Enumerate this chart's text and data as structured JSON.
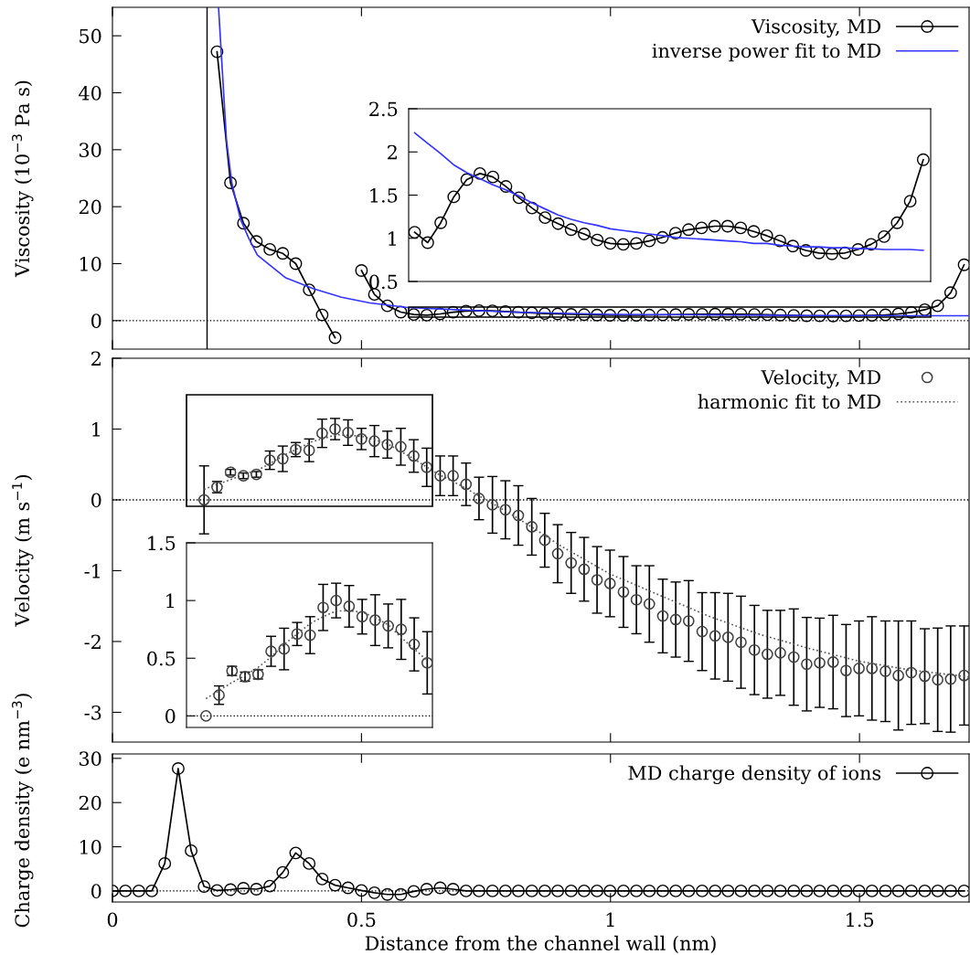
{
  "chart_data": [
    {
      "type": "line",
      "ylabel": "Viscosity (10$^{−3}$ Pa s)",
      "xlim": [
        0,
        1.72
      ],
      "ylim": [
        -5,
        55
      ],
      "xticks": [
        0,
        0.5,
        1,
        1.5
      ],
      "yticks": [
        0,
        10,
        20,
        30,
        40,
        50
      ],
      "tick_labels": "y",
      "legend": "top right",
      "grid": false,
      "marker": "circle",
      "ref_lines": [
        {
          "axis": "x",
          "value": 0.19,
          "color": "#000000",
          "line_style": "solid"
        },
        {
          "axis": "y",
          "value": 0,
          "color": "#000000",
          "line_style": "dotted"
        }
      ],
      "series": [
        {
          "name": "Viscosity, MD",
          "color": "#000000",
          "line_style": "solid",
          "x": [
            0.21,
            0.237,
            0.263,
            0.289,
            0.316,
            0.342,
            0.368,
            0.395,
            0.421,
            0.447,
            0.473,
            0.5,
            0.526,
            0.552,
            0.579,
            0.605,
            0.631,
            0.658,
            0.684,
            0.71,
            0.736,
            0.763,
            0.789,
            0.815,
            0.842,
            0.868,
            0.894,
            0.921,
            0.947,
            0.973,
            0.999,
            1.026,
            1.052,
            1.078,
            1.105,
            1.131,
            1.157,
            1.184,
            1.21,
            1.236,
            1.262,
            1.289,
            1.315,
            1.341,
            1.368,
            1.394,
            1.42,
            1.447,
            1.473,
            1.499,
            1.525,
            1.552,
            1.578,
            1.604,
            1.631,
            1.657,
            1.683,
            1.71
          ],
          "values": [
            47.2,
            24.2,
            17.1,
            13.9,
            12.5,
            11.8,
            10.0,
            5.4,
            1.0,
            -3.0,
            null,
            8.8,
            4.6,
            2.6,
            1.5,
            1.07,
            0.95,
            1.18,
            1.48,
            1.68,
            1.75,
            1.71,
            1.6,
            1.47,
            1.35,
            1.24,
            1.17,
            1.1,
            1.05,
            0.98,
            0.94,
            0.93,
            0.94,
            0.97,
            1.01,
            1.06,
            1.1,
            1.12,
            1.14,
            1.14,
            1.12,
            1.08,
            1.03,
            0.97,
            0.91,
            0.86,
            0.83,
            0.82,
            0.83,
            0.87,
            0.93,
            1.02,
            1.18,
            1.43,
            1.91,
            2.6,
            4.9,
            9.8
          ]
        },
        {
          "name": "inverse power fit to MD",
          "color": "#3333ff",
          "marker": "none",
          "line_style": "solid",
          "x": [
            0.213,
            0.229,
            0.24,
            0.257,
            0.274,
            0.291,
            0.348,
            0.404,
            0.46,
            0.517,
            0.593,
            0.8,
            1.0,
            1.2,
            1.4,
            1.644,
            1.72
          ],
          "values": [
            55,
            31.6,
            24,
            17.8,
            14.4,
            11.5,
            7.5,
            5.6,
            4.1,
            3.1,
            2.3,
            1.5,
            1.1,
            1.0,
            0.9,
            0.86,
            0.85
          ]
        }
      ]
    },
    {
      "type": "line",
      "categories": [
        null,
        null,
        null,
        null,
        null,
        null,
        null,
        null,
        null,
        null,
        null,
        null,
        null,
        null,
        null,
        null,
        null,
        null,
        null,
        null,
        null,
        null,
        null,
        null,
        null,
        null,
        null,
        null,
        null,
        null,
        null,
        null,
        null,
        null,
        null,
        null,
        null,
        null,
        null,
        null
      ],
      "ylim": [
        0.5,
        2.5
      ],
      "yticks": [
        0.5,
        1,
        1.5,
        2,
        2.5
      ],
      "tick_labels": "y",
      "grid": false,
      "marker": "circle",
      "series": [
        {
          "color": "#000000",
          "line_style": "solid",
          "values": [
            1.07,
            0.95,
            1.18,
            1.48,
            1.68,
            1.75,
            1.71,
            1.6,
            1.47,
            1.35,
            1.24,
            1.17,
            1.1,
            1.05,
            0.98,
            0.94,
            0.93,
            0.94,
            0.97,
            1.01,
            1.06,
            1.1,
            1.12,
            1.14,
            1.14,
            1.12,
            1.08,
            1.03,
            0.97,
            0.91,
            0.86,
            0.83,
            0.82,
            0.83,
            0.87,
            0.93,
            1.02,
            1.18,
            1.43,
            1.91
          ]
        },
        {
          "color": "#3333ff",
          "marker": "none",
          "line_style": "solid",
          "values": [
            2.22,
            2.1,
            1.98,
            1.85,
            1.76,
            1.69,
            1.62,
            1.56,
            1.49,
            1.41,
            1.34,
            1.27,
            1.22,
            1.18,
            1.15,
            1.11,
            1.09,
            1.07,
            1.05,
            1.03,
            1.01,
            1.0,
            0.99,
            0.98,
            0.97,
            0.96,
            0.94,
            0.94,
            0.92,
            0.91,
            0.9,
            0.9,
            0.89,
            0.89,
            0.88,
            0.88,
            0.87,
            0.87,
            0.87,
            0.86
          ]
        }
      ]
    },
    {
      "type": "scatter",
      "ylabel": "Velocity (m s$^{−1}$)",
      "xlim": [
        0,
        1.72
      ],
      "ylim": [
        -3.42,
        2
      ],
      "xticks": [
        0,
        0.5,
        1,
        1.5
      ],
      "yticks": [
        -3,
        -2,
        -1,
        0,
        1,
        2
      ],
      "tick_labels": "y",
      "legend": "top right",
      "grid": false,
      "marker": "circle",
      "ref_lines": [
        {
          "axis": "y",
          "value": 0,
          "color": "#000000",
          "line_style": "dotted"
        }
      ],
      "series": [
        {
          "name": "Velocity, MD",
          "color": "#404040",
          "x": [
            0.184,
            0.21,
            0.237,
            0.263,
            0.289,
            0.316,
            0.342,
            0.368,
            0.395,
            0.421,
            0.447,
            0.473,
            0.5,
            0.526,
            0.552,
            0.579,
            0.605,
            0.631,
            0.658,
            0.684,
            0.71,
            0.736,
            0.763,
            0.789,
            0.815,
            0.842,
            0.868,
            0.894,
            0.921,
            0.947,
            0.973,
            0.999,
            1.026,
            1.052,
            1.078,
            1.105,
            1.131,
            1.157,
            1.184,
            1.21,
            1.236,
            1.262,
            1.289,
            1.315,
            1.341,
            1.368,
            1.394,
            1.42,
            1.447,
            1.473,
            1.499,
            1.525,
            1.552,
            1.578,
            1.604,
            1.631,
            1.657,
            1.683,
            1.71
          ],
          "values": [
            0.0,
            0.18,
            0.39,
            0.34,
            0.36,
            0.56,
            0.58,
            0.71,
            0.7,
            0.94,
            1.0,
            0.95,
            0.86,
            0.83,
            0.78,
            0.75,
            0.62,
            0.46,
            0.34,
            0.34,
            0.22,
            0.02,
            -0.07,
            -0.14,
            -0.22,
            -0.38,
            -0.57,
            -0.76,
            -0.89,
            -0.98,
            -1.13,
            -1.18,
            -1.3,
            -1.41,
            -1.47,
            -1.64,
            -1.69,
            -1.71,
            -1.86,
            -1.92,
            -1.94,
            -2.01,
            -2.12,
            -2.18,
            -2.16,
            -2.22,
            -2.32,
            -2.3,
            -2.29,
            -2.41,
            -2.38,
            -2.38,
            -2.42,
            -2.48,
            -2.44,
            -2.49,
            -2.54,
            -2.53,
            -2.48
          ],
          "errors": [
            0.48,
            0.08,
            0.04,
            0.04,
            0.04,
            0.13,
            0.18,
            0.1,
            0.16,
            0.2,
            0.15,
            0.18,
            0.15,
            0.22,
            0.19,
            0.26,
            0.23,
            0.27,
            0.28,
            0.28,
            0.3,
            0.3,
            0.4,
            0.41,
            0.42,
            0.4,
            0.38,
            0.41,
            0.43,
            0.45,
            0.47,
            0.47,
            0.5,
            0.48,
            0.54,
            0.52,
            0.53,
            0.57,
            0.55,
            0.61,
            0.62,
            0.65,
            0.63,
            0.62,
            0.6,
            0.68,
            0.66,
            0.63,
            0.66,
            0.65,
            0.67,
            0.73,
            0.71,
            0.77,
            0.73,
            0.67,
            0.73,
            0.75,
            0.7
          ]
        },
        {
          "name": "harmonic fit to MD",
          "type": "line",
          "color": "#555555",
          "marker": "none",
          "line_style": "dotted",
          "x": [
            0.184,
            0.25,
            0.3,
            0.35,
            0.4,
            0.45,
            0.5,
            0.55,
            0.6,
            0.65,
            0.7,
            0.75,
            0.8,
            0.85,
            0.9,
            0.95,
            1.0,
            1.1,
            1.2,
            1.3,
            1.4,
            1.5,
            1.6,
            1.72
          ],
          "values": [
            0.15,
            0.32,
            0.45,
            0.65,
            0.82,
            0.92,
            0.9,
            0.8,
            0.6,
            0.38,
            0.2,
            0.0,
            -0.2,
            -0.42,
            -0.65,
            -0.85,
            -1.05,
            -1.35,
            -1.65,
            -1.9,
            -2.1,
            -2.28,
            -2.4,
            -2.5
          ]
        }
      ]
    },
    {
      "type": "scatter",
      "categories": [
        null,
        null,
        null,
        null,
        null,
        null,
        null,
        null,
        null,
        null,
        null,
        null,
        null,
        null,
        null,
        null,
        null,
        null
      ],
      "ylim": [
        -0.1,
        1.5
      ],
      "yticks": [
        0,
        0.5,
        1,
        1.5
      ],
      "tick_labels": "y",
      "grid": false,
      "marker": "circle",
      "ref_lines": [
        {
          "axis": "y",
          "value": 0,
          "color": "#000000",
          "line_style": "dotted"
        }
      ],
      "series": [
        {
          "color": "#404040",
          "values": [
            0.0,
            0.18,
            0.39,
            0.34,
            0.36,
            0.56,
            0.58,
            0.71,
            0.7,
            0.94,
            1.0,
            0.95,
            0.86,
            0.83,
            0.78,
            0.75,
            0.62,
            0.46
          ],
          "errors": [
            null,
            0.08,
            0.04,
            0.04,
            0.04,
            0.13,
            0.18,
            0.1,
            0.16,
            0.2,
            0.15,
            0.18,
            0.15,
            0.22,
            0.19,
            0.26,
            0.23,
            0.27
          ]
        },
        {
          "type": "line",
          "color": "#555555",
          "marker": "none",
          "line_style": "dotted",
          "values": [
            0.15,
            0.22,
            0.29,
            0.35,
            0.42,
            0.51,
            0.62,
            0.71,
            0.8,
            0.86,
            0.91,
            0.91,
            0.9,
            0.85,
            0.79,
            0.68,
            0.58,
            0.48
          ]
        }
      ]
    },
    {
      "type": "line",
      "xlabel": "Distance from the channel wall (nm)",
      "ylabel": "Charge density (e nm$^{−3}$)",
      "xlim": [
        0,
        1.72
      ],
      "ylim": [
        -2.5,
        31
      ],
      "xticks": [
        0,
        0.5,
        1,
        1.5
      ],
      "yticks": [
        0,
        10,
        20,
        30
      ],
      "legend": "top right",
      "grid": false,
      "marker": "circle",
      "ref_lines": [
        {
          "axis": "y",
          "value": 0,
          "color": "#000000",
          "line_style": "dotted"
        }
      ],
      "series": [
        {
          "name": "MD charge density of ions",
          "color": "#000000",
          "line_style": "solid",
          "x": [
            0,
            0.026,
            0.053,
            0.079,
            0.105,
            0.132,
            0.158,
            0.184,
            0.21,
            0.237,
            0.263,
            0.289,
            0.316,
            0.342,
            0.368,
            0.395,
            0.421,
            0.447,
            0.473,
            0.5,
            0.526,
            0.552,
            0.579,
            0.605,
            0.631,
            0.658,
            0.684,
            0.71,
            0.736,
            0.763,
            0.789,
            0.815,
            0.842,
            0.868,
            0.894,
            0.921,
            0.947,
            0.973,
            0.999,
            1.026,
            1.052,
            1.078,
            1.105,
            1.131,
            1.157,
            1.184,
            1.21,
            1.236,
            1.262,
            1.289,
            1.315,
            1.341,
            1.368,
            1.394,
            1.42,
            1.447,
            1.473,
            1.499,
            1.525,
            1.552,
            1.578,
            1.604,
            1.631,
            1.657,
            1.683,
            1.71
          ],
          "values": [
            0,
            0,
            0,
            0,
            6.2,
            27.7,
            9.1,
            1.0,
            0.1,
            0.3,
            0.6,
            0.4,
            1.1,
            4.2,
            8.6,
            6.2,
            2.7,
            1.3,
            0.7,
            0.1,
            -0.4,
            -0.8,
            -0.8,
            -0.1,
            0.4,
            0.7,
            0.4,
            0,
            0,
            0,
            0,
            0,
            0,
            0,
            0,
            0,
            0,
            0,
            0,
            0,
            0,
            0,
            0,
            0,
            0,
            0,
            0,
            0,
            0,
            0,
            0,
            0,
            0,
            0,
            0,
            0,
            0,
            0,
            0,
            0,
            0,
            0,
            0,
            0,
            0,
            0
          ]
        }
      ]
    }
  ]
}
